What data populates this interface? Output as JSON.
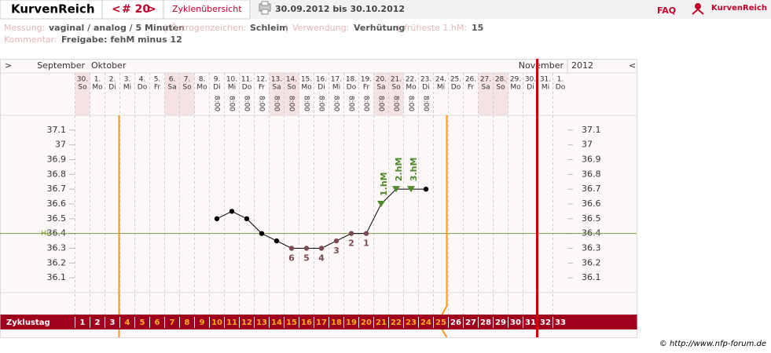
{
  "header": {
    "logo": "KurvenReich",
    "nav_prev": "<",
    "cycle": "# 20",
    "nav_next": ">",
    "overview": "Zyklenübersicht",
    "date_range": "30.09.2012 bis 30.10.2012",
    "faq": "FAQ",
    "brand": "KurvenReich"
  },
  "info": {
    "measurement_label": "Messung:",
    "measurement": "vaginal / analog / 5 Minuten",
    "separator": "|",
    "estrogen_label": "Östrogenzeichen:",
    "estrogen": "Schleim",
    "usage_label": "Verwendung:",
    "usage": "Verhütung",
    "earliest_label": "früheste 1.hM:",
    "earliest": "15",
    "comment_label": "Kommentar:",
    "comment": "Freigabe: fehM minus 12"
  },
  "chart_data": {
    "type": "line",
    "nav_left": ">",
    "nav_right": "<",
    "months": [
      "September",
      "Oktober",
      "November"
    ],
    "year": "2012",
    "categories": [
      "30.",
      "1.",
      "2.",
      "3.",
      "4.",
      "5.",
      "6.",
      "7.",
      "8.",
      "9.",
      "10.",
      "11.",
      "12.",
      "13.",
      "14.",
      "15.",
      "16.",
      "17.",
      "18.",
      "19.",
      "20.",
      "21.",
      "22.",
      "23.",
      "24.",
      "25.",
      "26.",
      "27.",
      "28.",
      "29.",
      "30.",
      "31.",
      "1."
    ],
    "weekdays": [
      "So",
      "Mo",
      "Di",
      "Mi",
      "Do",
      "Fr",
      "Sa",
      "So",
      "Mo",
      "Di",
      "Mi",
      "Do",
      "Fr",
      "Sa",
      "So",
      "Mo",
      "Di",
      "Mi",
      "Do",
      "Fr",
      "Sa",
      "So",
      "Mo",
      "Di",
      "Mi",
      "Do",
      "Fr",
      "Sa",
      "So",
      "Mo",
      "Di",
      "Mi",
      "Do"
    ],
    "times": [
      null,
      null,
      null,
      null,
      null,
      null,
      null,
      null,
      null,
      "8:00",
      "8:00",
      "8:00",
      "8:00",
      "8:00",
      "8:00",
      "8:00",
      "8:00",
      "8:00",
      "8:00",
      "8:00",
      "8:00",
      "8:00",
      "8:00",
      "8:00",
      null,
      null,
      null,
      null,
      null,
      null,
      null,
      null,
      null
    ],
    "values": [
      null,
      null,
      null,
      null,
      null,
      null,
      null,
      null,
      null,
      36.5,
      36.55,
      36.5,
      36.4,
      36.35,
      36.3,
      36.3,
      36.3,
      36.35,
      36.4,
      36.4,
      36.6,
      36.7,
      36.7,
      36.7,
      null,
      null,
      null,
      null,
      null,
      null,
      null,
      null,
      null
    ],
    "count_labels": [
      null,
      null,
      null,
      null,
      null,
      null,
      null,
      null,
      null,
      null,
      null,
      null,
      null,
      null,
      "6",
      "5",
      "4",
      "3",
      "2",
      "1",
      null,
      null,
      null,
      null,
      null,
      null,
      null,
      null,
      null,
      null,
      null,
      null,
      null
    ],
    "hm_labels": [
      null,
      null,
      null,
      null,
      null,
      null,
      null,
      null,
      null,
      null,
      null,
      null,
      null,
      null,
      null,
      null,
      null,
      null,
      null,
      null,
      "1.hM",
      "2.hM",
      "3.hM",
      null,
      null,
      null,
      null,
      null,
      null,
      null,
      null,
      null,
      null
    ],
    "color": "#000000",
    "count_color": "#7b4a55",
    "hm_color": "#4f8a2b",
    "cover_line": 36.4,
    "cover_line_label": "HL",
    "cover_line_color": "#7a9a3a",
    "ylim": [
      36.0,
      37.2
    ],
    "yticks": [
      36.1,
      36.2,
      36.3,
      36.4,
      36.5,
      36.6,
      36.7,
      36.8,
      36.9,
      37,
      37.1
    ],
    "cycle_label": "Zyklustag",
    "cycle_days": [
      1,
      2,
      3,
      4,
      5,
      6,
      7,
      8,
      9,
      10,
      11,
      12,
      13,
      14,
      15,
      16,
      17,
      18,
      19,
      20,
      21,
      22,
      23,
      24,
      25,
      26,
      27,
      28,
      29,
      30,
      31,
      32,
      33
    ]
  },
  "footer": "© http://www.nfp-forum.de"
}
